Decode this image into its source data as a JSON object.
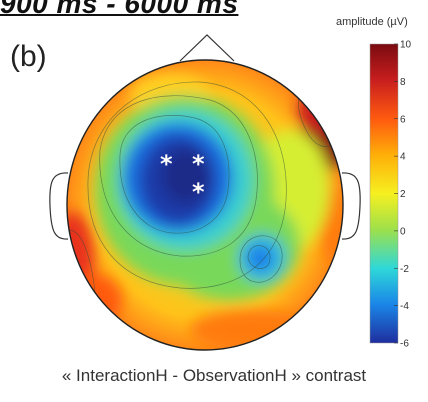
{
  "header_fragment": "900 ms - 6000 ms",
  "panel_label": "(b)",
  "colorbar": {
    "title": "amplitude (µV)",
    "min": -6,
    "max": 10,
    "ticks": [
      "10",
      "8",
      "6",
      "4",
      "2",
      "0",
      "-2",
      "-4",
      "-6"
    ],
    "colors": [
      "#7a0b10",
      "#c81e1e",
      "#ff5a10",
      "#ffae08",
      "#f6f020",
      "#9ee04a",
      "#2fd8d8",
      "#1a86e8",
      "#1f2e9e"
    ]
  },
  "markers": [
    "*",
    "*",
    "*"
  ],
  "caption": "« InteractionH - ObservationH » contrast"
}
